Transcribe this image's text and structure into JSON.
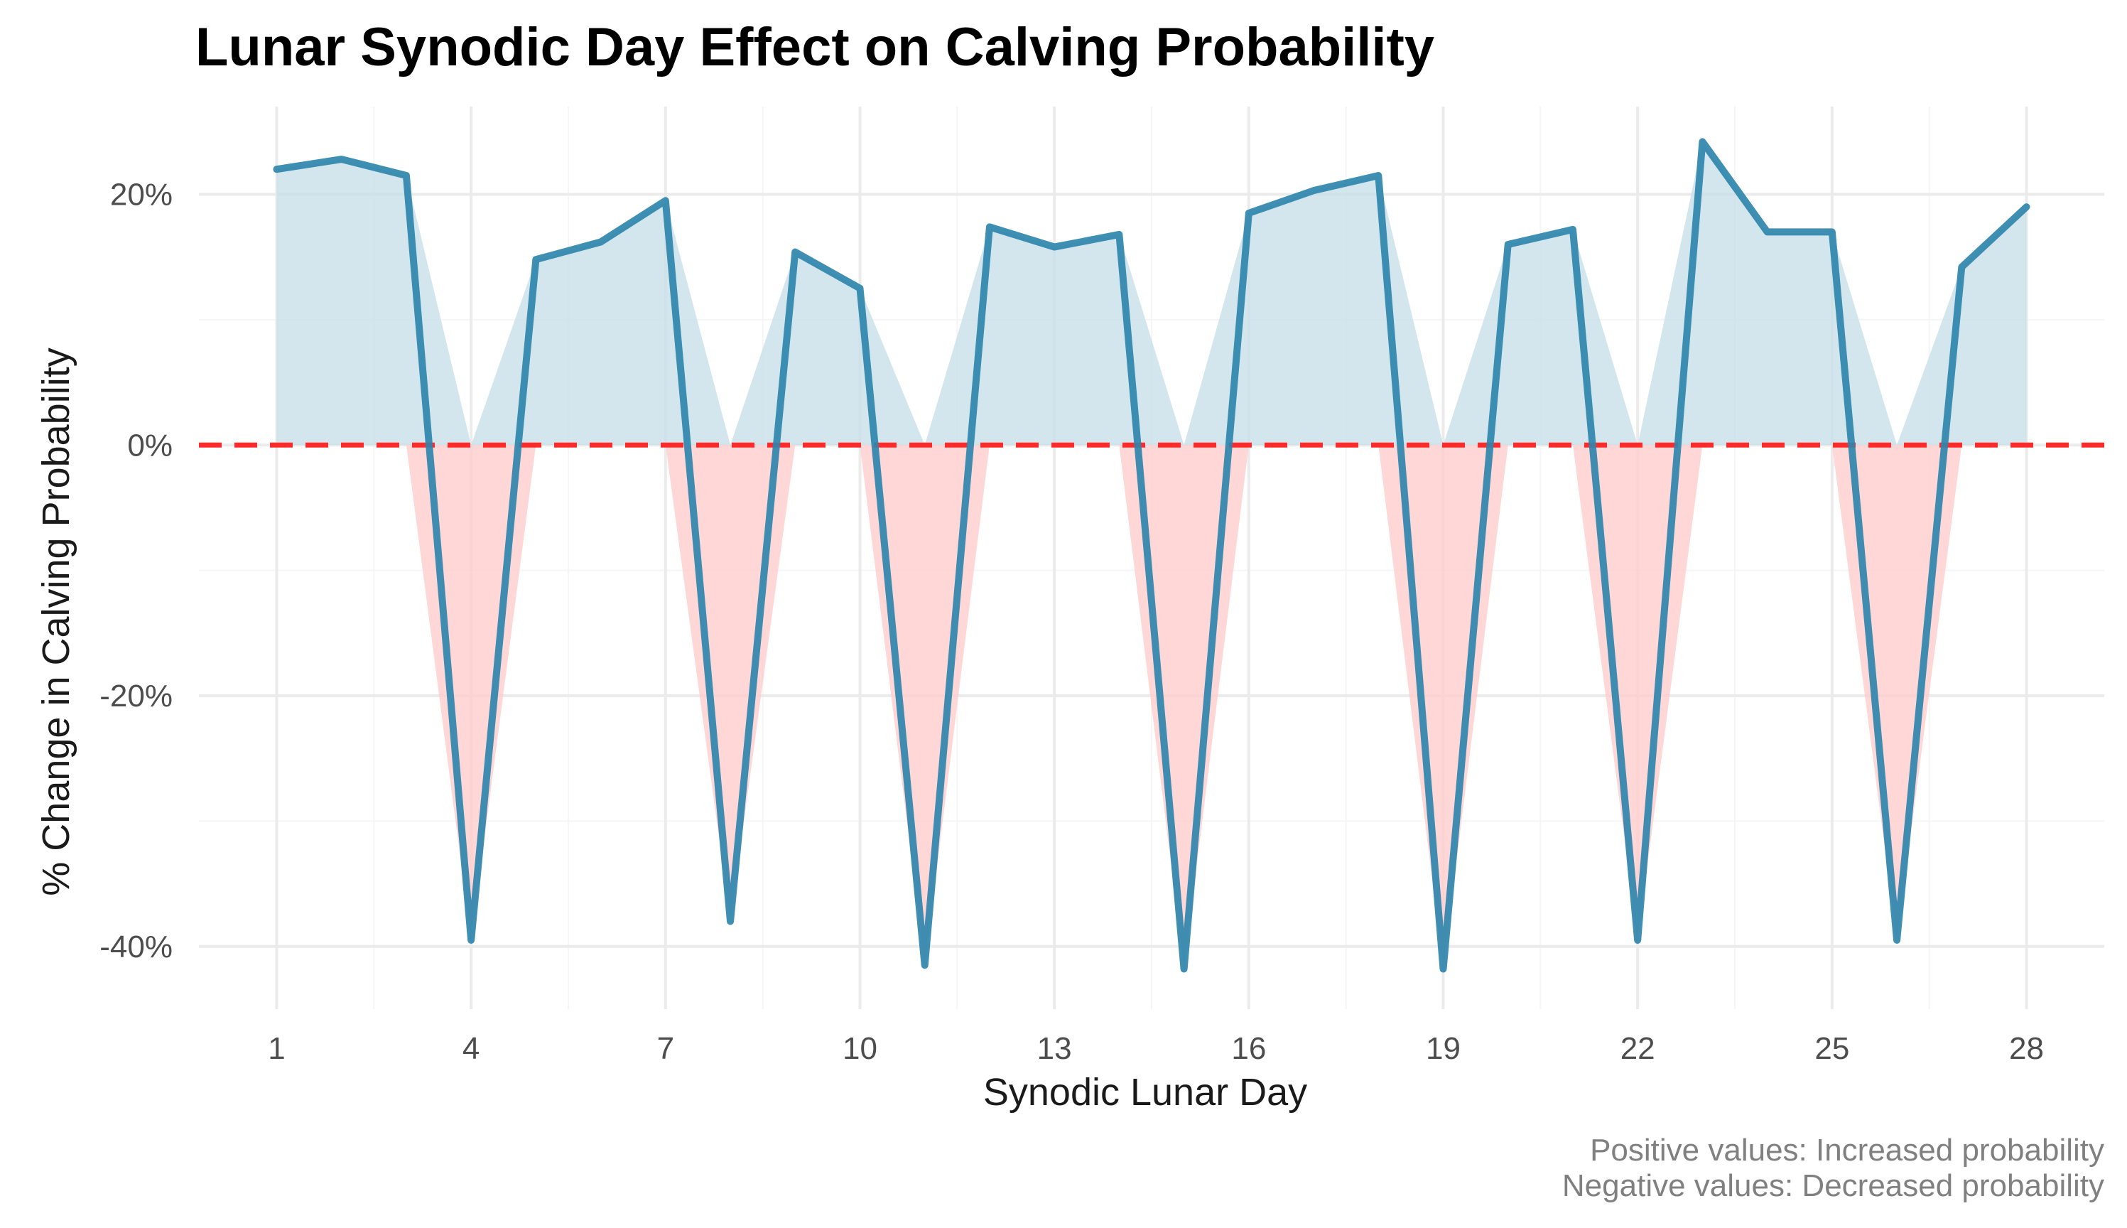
{
  "chart_data": {
    "type": "area",
    "title": "Lunar Synodic Day Effect on Calving Probability",
    "xlabel": "Synodic Lunar Day",
    "ylabel": "% Change in Calving Probability",
    "x": [
      1,
      2,
      3,
      4,
      5,
      6,
      7,
      8,
      9,
      10,
      11,
      12,
      13,
      14,
      15,
      16,
      17,
      18,
      19,
      20,
      21,
      22,
      23,
      24,
      25,
      26,
      27,
      28
    ],
    "series": [
      {
        "name": "% Change in Calving Probability",
        "values": [
          22.0,
          22.8,
          21.5,
          -39.5,
          14.8,
          16.2,
          19.5,
          -38.0,
          15.4,
          12.5,
          -41.5,
          17.4,
          15.8,
          16.8,
          -41.8,
          18.5,
          20.3,
          21.5,
          -41.8,
          16.0,
          17.2,
          -39.5,
          24.2,
          17.0,
          17.0,
          -39.5,
          14.2,
          19.0
        ]
      }
    ],
    "xlim": [
      -0.2,
      29.2
    ],
    "ylim": [
      -45,
      27
    ],
    "x_ticks": [
      1,
      4,
      7,
      10,
      13,
      16,
      19,
      22,
      25,
      28
    ],
    "x_tick_labels": [
      "1",
      "4",
      "7",
      "10",
      "13",
      "16",
      "19",
      "22",
      "25",
      "28"
    ],
    "y_ticks": [
      -40,
      -20,
      0,
      20
    ],
    "y_tick_labels": [
      "-40%",
      "-20%",
      "0%",
      "20%"
    ],
    "reference_line": {
      "y": 0,
      "color": "#ff2a2a",
      "style": "dashed"
    },
    "colors": {
      "line": "#2f86ad",
      "positive_fill": "#c8e0ea",
      "negative_fill": "#ffcccc"
    },
    "caption_lines": [
      "Positive values: Increased probability",
      "Negative values: Decreased probability"
    ]
  }
}
